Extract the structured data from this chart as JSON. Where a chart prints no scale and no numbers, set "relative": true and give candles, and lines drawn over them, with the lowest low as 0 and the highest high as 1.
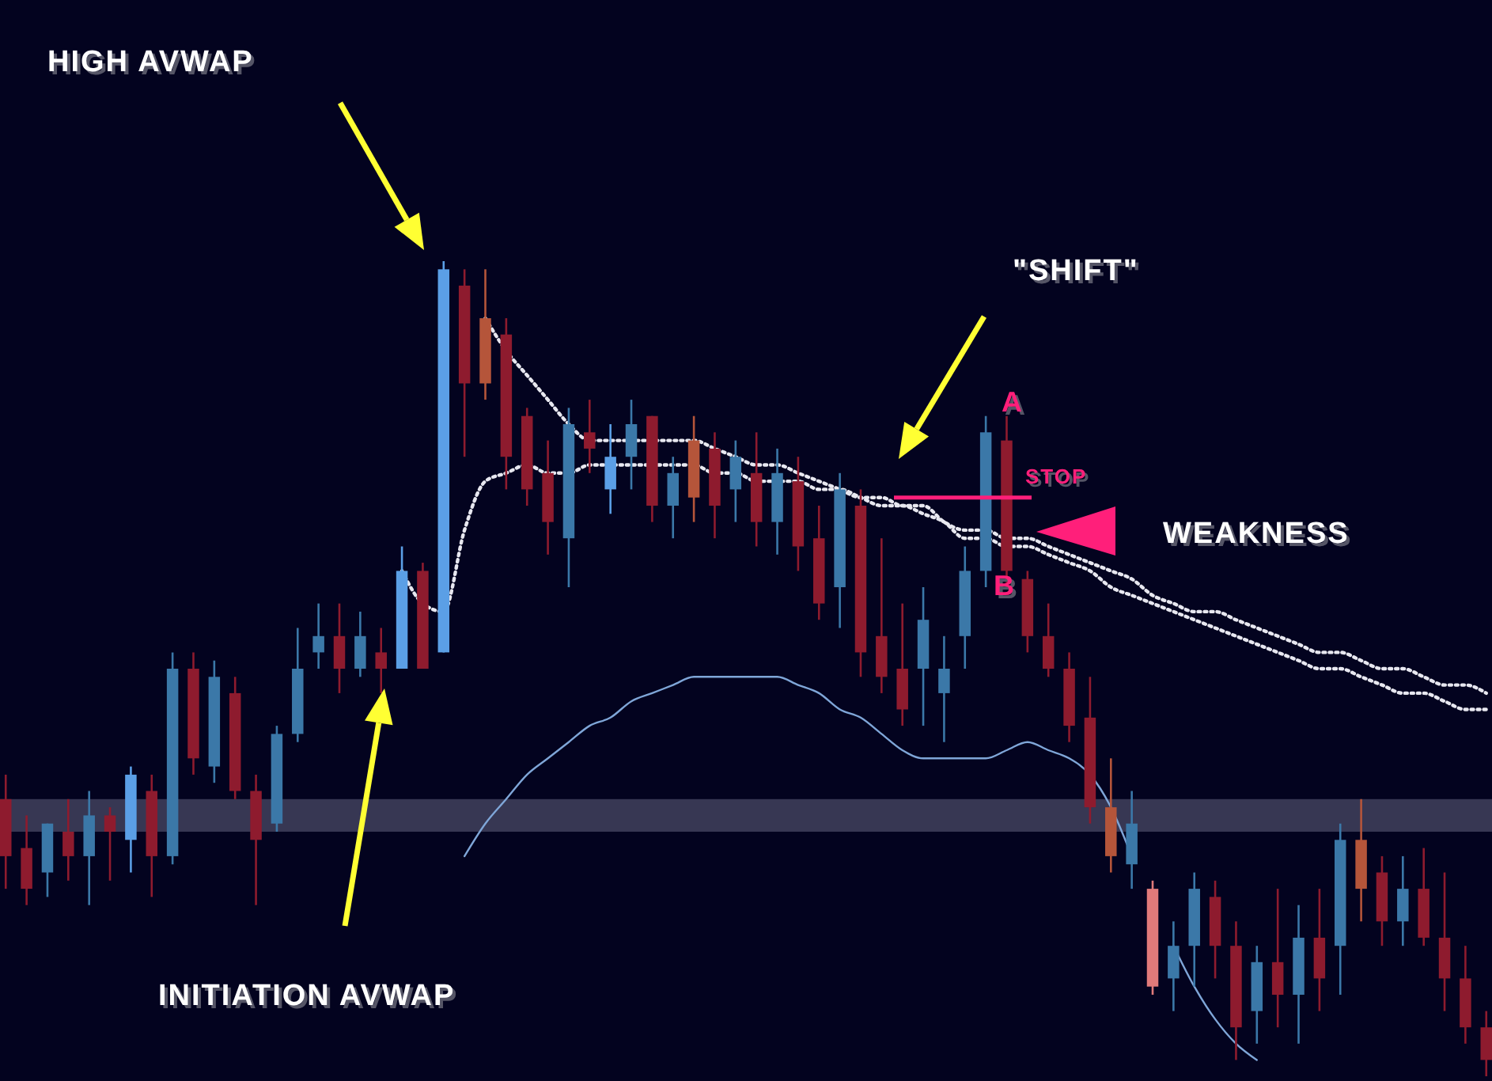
{
  "chart_data": {
    "type": "candlestick",
    "relative": true,
    "categories": [
      null,
      null,
      null,
      null,
      null,
      null,
      null,
      null,
      null,
      null,
      null,
      null,
      null,
      null,
      null,
      null,
      null,
      null,
      null,
      null,
      null,
      null,
      null,
      null,
      null,
      null,
      null,
      null,
      null,
      null,
      null,
      null,
      null,
      null,
      null,
      null,
      null,
      null,
      null,
      null,
      null,
      null,
      null,
      null,
      null,
      null,
      null,
      null,
      null,
      null,
      null,
      null,
      null,
      null,
      null,
      null,
      null,
      null,
      null,
      null,
      null,
      null,
      null,
      null,
      null,
      null,
      null,
      null,
      null,
      null,
      null,
      null
    ],
    "ohlc": [
      [
        0.34,
        0.37,
        0.23,
        0.27
      ],
      [
        0.28,
        0.32,
        0.21,
        0.23
      ],
      [
        0.25,
        0.31,
        0.22,
        0.31
      ],
      [
        0.3,
        0.34,
        0.24,
        0.27
      ],
      [
        0.27,
        0.35,
        0.21,
        0.32
      ],
      [
        0.32,
        0.33,
        0.24,
        0.3
      ],
      [
        0.29,
        0.38,
        0.25,
        0.37
      ],
      [
        0.35,
        0.37,
        0.22,
        0.27
      ],
      [
        0.27,
        0.52,
        0.26,
        0.5
      ],
      [
        0.5,
        0.52,
        0.37,
        0.39
      ],
      [
        0.38,
        0.51,
        0.36,
        0.49
      ],
      [
        0.47,
        0.49,
        0.34,
        0.35
      ],
      [
        0.35,
        0.37,
        0.21,
        0.29
      ],
      [
        0.31,
        0.43,
        0.3,
        0.42
      ],
      [
        0.42,
        0.55,
        0.41,
        0.5
      ],
      [
        0.52,
        0.58,
        0.5,
        0.54
      ],
      [
        0.54,
        0.58,
        0.47,
        0.5
      ],
      [
        0.5,
        0.57,
        0.49,
        0.54
      ],
      [
        0.52,
        0.55,
        0.47,
        0.5
      ],
      [
        0.5,
        0.65,
        0.5,
        0.62
      ],
      [
        0.62,
        0.63,
        0.5,
        0.5
      ],
      [
        0.52,
        1.0,
        0.52,
        0.99
      ],
      [
        0.97,
        0.99,
        0.76,
        0.85
      ],
      [
        0.93,
        0.99,
        0.83,
        0.85
      ],
      [
        0.91,
        0.93,
        0.72,
        0.76
      ],
      [
        0.81,
        0.82,
        0.7,
        0.72
      ],
      [
        0.74,
        0.78,
        0.64,
        0.68
      ],
      [
        0.66,
        0.82,
        0.6,
        0.8
      ],
      [
        0.79,
        0.83,
        0.74,
        0.77
      ],
      [
        0.72,
        0.8,
        0.69,
        0.76
      ],
      [
        0.76,
        0.83,
        0.72,
        0.8
      ],
      [
        0.81,
        0.81,
        0.68,
        0.7
      ],
      [
        0.7,
        0.76,
        0.66,
        0.74
      ],
      [
        0.71,
        0.81,
        0.68,
        0.78
      ],
      [
        0.77,
        0.79,
        0.66,
        0.7
      ],
      [
        0.72,
        0.78,
        0.68,
        0.76
      ],
      [
        0.74,
        0.79,
        0.65,
        0.68
      ],
      [
        0.68,
        0.77,
        0.64,
        0.74
      ],
      [
        0.73,
        0.76,
        0.62,
        0.65
      ],
      [
        0.66,
        0.7,
        0.56,
        0.58
      ],
      [
        0.6,
        0.74,
        0.55,
        0.72
      ],
      [
        0.7,
        0.72,
        0.49,
        0.52
      ],
      [
        0.54,
        0.66,
        0.47,
        0.49
      ],
      [
        0.5,
        0.58,
        0.43,
        0.45
      ],
      [
        0.5,
        0.6,
        0.43,
        0.56
      ],
      [
        0.47,
        0.54,
        0.41,
        0.5
      ],
      [
        0.54,
        0.65,
        0.5,
        0.62
      ],
      [
        0.62,
        0.81,
        0.6,
        0.79
      ],
      [
        0.78,
        0.81,
        0.6,
        0.62
      ],
      [
        0.61,
        0.62,
        0.52,
        0.54
      ],
      [
        0.54,
        0.58,
        0.49,
        0.5
      ],
      [
        0.5,
        0.52,
        0.41,
        0.43
      ],
      [
        0.44,
        0.49,
        0.31,
        0.33
      ],
      [
        0.33,
        0.39,
        0.25,
        0.27
      ],
      [
        0.26,
        0.35,
        0.23,
        0.31
      ],
      [
        0.23,
        0.24,
        0.1,
        0.11
      ],
      [
        0.12,
        0.19,
        0.08,
        0.16
      ],
      [
        0.16,
        0.25,
        0.11,
        0.23
      ],
      [
        0.22,
        0.24,
        0.12,
        0.16
      ],
      [
        0.16,
        0.19,
        0.02,
        0.06
      ],
      [
        0.08,
        0.16,
        0.04,
        0.14
      ],
      [
        0.14,
        0.23,
        0.06,
        0.1
      ],
      [
        0.1,
        0.21,
        0.04,
        0.17
      ],
      [
        0.17,
        0.23,
        0.08,
        0.12
      ],
      [
        0.16,
        0.31,
        0.1,
        0.29
      ],
      [
        0.29,
        0.34,
        0.19,
        0.23
      ],
      [
        0.25,
        0.27,
        0.16,
        0.19
      ],
      [
        0.19,
        0.27,
        0.16,
        0.23
      ],
      [
        0.23,
        0.28,
        0.16,
        0.17
      ],
      [
        0.17,
        0.25,
        0.08,
        0.12
      ],
      [
        0.12,
        0.16,
        0.04,
        0.06
      ],
      [
        0.06,
        0.08,
        0,
        0.02
      ]
    ],
    "colors": [
      "#8e1b2e",
      "#8e1b2e",
      "#3b78a8",
      "#8e1b2e",
      "#3b78a8",
      "#8e1b2e",
      "#5b9fe6",
      "#8e1b2e",
      "#3b78a8",
      "#8e1b2e",
      "#3b78a8",
      "#8e1b2e",
      "#8e1b2e",
      "#3b78a8",
      "#3b78a8",
      "#3b78a8",
      "#8e1b2e",
      "#3b78a8",
      "#8e1b2e",
      "#5b9fe6",
      "#8e1b2e",
      "#5b9fe6",
      "#8e1b2e",
      "#b5553a",
      "#8e1b2e",
      "#8e1b2e",
      "#8e1b2e",
      "#3b78a8",
      "#8e1b2e",
      "#5b9fe6",
      "#3b78a8",
      "#8e1b2e",
      "#3b78a8",
      "#b5553a",
      "#8e1b2e",
      "#3b78a8",
      "#8e1b2e",
      "#3b78a8",
      "#8e1b2e",
      "#8e1b2e",
      "#3b78a8",
      "#8e1b2e",
      "#8e1b2e",
      "#8e1b2e",
      "#3b78a8",
      "#3b78a8",
      "#3b78a8",
      "#3b78a8",
      "#8e1b2e",
      "#8e1b2e",
      "#8e1b2e",
      "#8e1b2e",
      "#8e1b2e",
      "#b5553a",
      "#3b78a8",
      "#e07a7a",
      "#3b78a8",
      "#3b78a8",
      "#8e1b2e",
      "#8e1b2e",
      "#3b78a8",
      "#8e1b2e",
      "#3b78a8",
      "#8e1b2e",
      "#3b78a8",
      "#b5553a",
      "#8e1b2e",
      "#3b78a8",
      "#8e1b2e",
      "#8e1b2e",
      "#8e1b2e",
      "#8e1b2e"
    ],
    "series": [
      {
        "type": "line",
        "color": "#e8e8f0",
        "line_style": "dotted",
        "values": [
          null,
          null,
          null,
          null,
          null,
          null,
          null,
          null,
          null,
          null,
          null,
          null,
          null,
          null,
          null,
          null,
          null,
          null,
          null,
          null,
          null,
          null,
          null,
          0.93,
          0.89,
          0.86,
          0.83,
          0.8,
          0.78,
          0.78,
          0.78,
          0.78,
          0.78,
          0.78,
          0.77,
          0.76,
          0.75,
          0.75,
          0.74,
          0.73,
          0.72,
          0.71,
          0.71,
          0.7,
          0.7,
          0.68,
          0.67,
          0.67,
          0.66,
          0.66,
          0.65,
          0.64,
          0.63,
          0.62,
          0.61,
          0.59,
          0.58,
          0.57,
          0.57,
          0.56,
          0.55,
          0.54,
          0.53,
          0.52,
          0.52,
          0.51,
          0.5,
          0.5,
          0.49,
          0.48,
          0.48,
          0.47
        ]
      },
      {
        "type": "line",
        "color": "#e8e8f0",
        "line_style": "dotted",
        "values": [
          null,
          null,
          null,
          null,
          null,
          null,
          null,
          null,
          null,
          null,
          null,
          null,
          null,
          null,
          null,
          null,
          null,
          null,
          null,
          0.62,
          0.58,
          0.57,
          0.67,
          0.73,
          0.74,
          0.75,
          0.74,
          0.74,
          0.75,
          0.75,
          0.75,
          0.75,
          0.75,
          0.75,
          0.74,
          0.74,
          0.73,
          0.73,
          0.73,
          0.72,
          0.72,
          0.71,
          0.7,
          0.7,
          0.69,
          0.68,
          0.66,
          0.66,
          0.65,
          0.65,
          0.64,
          0.63,
          0.62,
          0.6,
          0.59,
          0.58,
          0.57,
          0.56,
          0.55,
          0.54,
          0.53,
          0.52,
          0.51,
          0.5,
          0.5,
          0.49,
          0.48,
          0.47,
          0.47,
          0.46,
          0.45,
          0.45
        ]
      },
      {
        "type": "line",
        "color": "#7fa6d8",
        "line_style": "solid",
        "values": [
          null,
          null,
          null,
          null,
          null,
          null,
          null,
          null,
          null,
          null,
          null,
          null,
          null,
          null,
          null,
          null,
          null,
          null,
          null,
          null,
          null,
          null,
          0.27,
          0.31,
          0.34,
          0.37,
          0.39,
          0.41,
          0.43,
          0.44,
          0.46,
          0.47,
          0.48,
          0.49,
          0.49,
          0.49,
          0.49,
          0.49,
          0.48,
          0.47,
          0.45,
          0.44,
          0.42,
          0.4,
          0.39,
          0.39,
          0.39,
          0.39,
          0.4,
          0.41,
          0.4,
          0.39,
          0.37,
          0.33,
          0.27,
          null,
          0.16,
          0.11,
          0.07,
          0.04,
          0.02,
          null,
          null,
          null,
          null,
          null,
          null,
          null,
          null,
          null,
          null,
          null
        ]
      }
    ],
    "bands": [
      {
        "axis": "y",
        "from": 0.3,
        "to": 0.34,
        "color": "#4a4a66"
      }
    ],
    "ref_lines": [
      {
        "axis": "y",
        "value": 0.71,
        "label": "STOP",
        "color": "#ff1f7a"
      }
    ],
    "annotations": [
      "HIGH AVWAP",
      "\"SHIFT\"",
      "A",
      "WEAKNESS",
      "B",
      "INITIATION AVWAP"
    ]
  }
}
